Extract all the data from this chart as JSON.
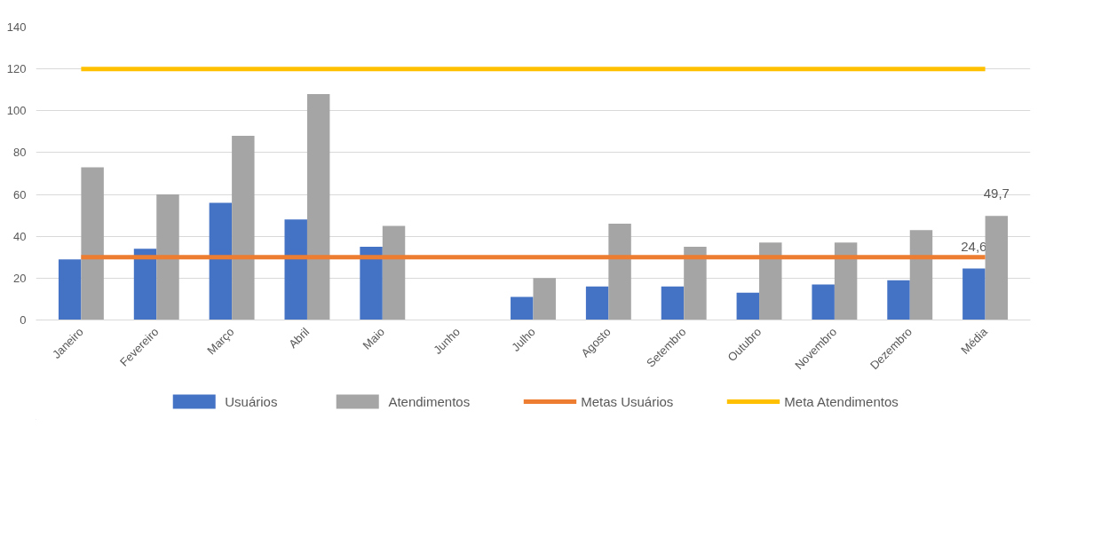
{
  "chart_data": {
    "type": "bar",
    "categories": [
      "Janeiro",
      "Fevereiro",
      "Março",
      "Abril",
      "Maio",
      "Junho",
      "Julho",
      "Agosto",
      "Setembro",
      "Outubro",
      "Novembro",
      "Dezembro",
      "Média"
    ],
    "series": [
      {
        "name": "Usuários",
        "color": "#4472c4",
        "values": [
          29,
          34,
          56,
          48,
          35,
          0,
          11,
          16,
          16,
          13,
          17,
          19,
          24.6
        ],
        "value_labels": [
          null,
          null,
          null,
          null,
          null,
          null,
          null,
          null,
          null,
          null,
          null,
          null,
          "24,6"
        ]
      },
      {
        "name": "Atendimentos",
        "color": "#a5a5a5",
        "values": [
          73,
          60,
          88,
          108,
          45,
          0,
          20,
          46,
          35,
          37,
          37,
          43,
          49.7
        ],
        "value_labels": [
          null,
          null,
          null,
          null,
          null,
          null,
          null,
          null,
          null,
          null,
          null,
          null,
          "49,7"
        ]
      },
      {
        "name": "Metas Usuários",
        "type": "line",
        "color": "#ed7d31",
        "values": [
          30,
          30,
          30,
          30,
          30,
          30,
          30,
          30,
          30,
          30,
          30,
          30,
          30
        ]
      },
      {
        "name": "Meta Atendimentos",
        "type": "line",
        "color": "#ffc000",
        "values": [
          120,
          120,
          120,
          120,
          120,
          120,
          120,
          120,
          120,
          120,
          120,
          120,
          120
        ]
      }
    ],
    "ylim": [
      0,
      140
    ],
    "yticks": [
      0,
      20,
      40,
      60,
      80,
      100,
      120,
      140
    ],
    "grid": "y",
    "legend": "bottom"
  }
}
